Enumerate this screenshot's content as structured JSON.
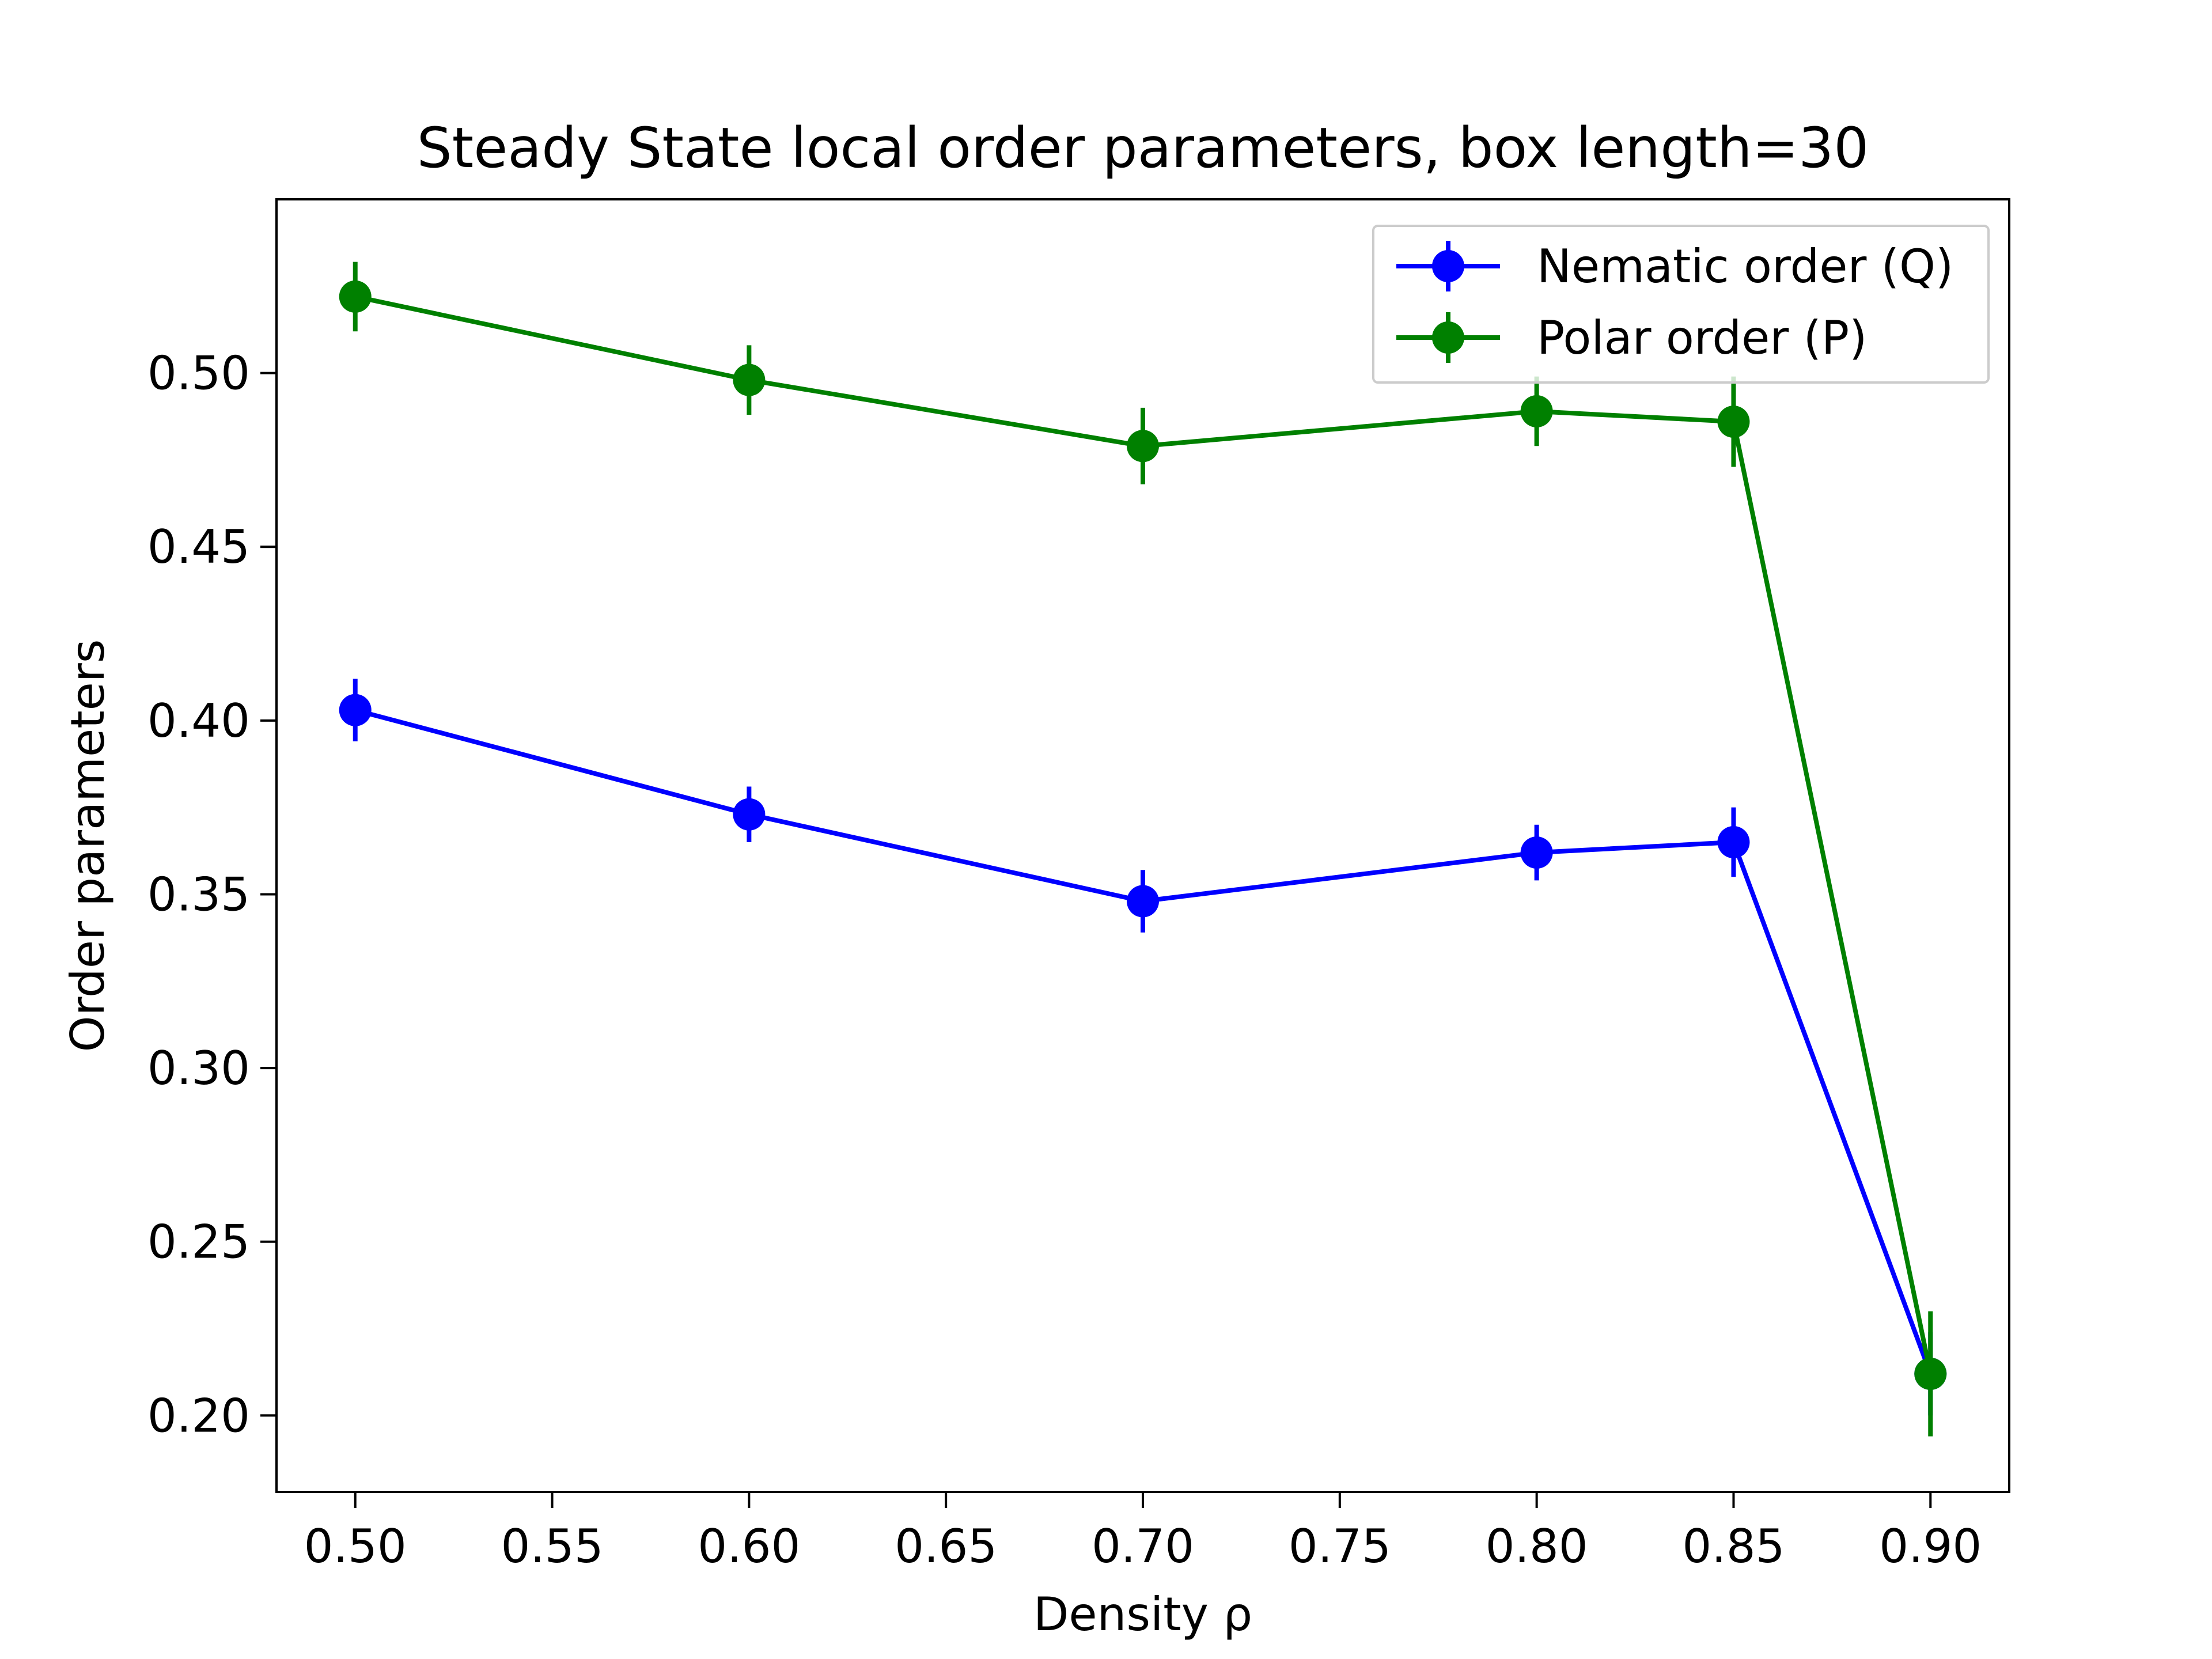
{
  "chart_data": {
    "type": "line",
    "title": "Steady State local order parameters, box length=30",
    "xlabel": "Density ρ",
    "ylabel": "Order parameters",
    "xlim": [
      0.48,
      0.92
    ],
    "ylim": [
      0.178,
      0.55
    ],
    "xticks": [
      0.5,
      0.55,
      0.6,
      0.65,
      0.7,
      0.75,
      0.8,
      0.85,
      0.9
    ],
    "xtick_labels": [
      "0.50",
      "0.55",
      "0.60",
      "0.65",
      "0.70",
      "0.75",
      "0.80",
      "0.85",
      "0.90"
    ],
    "yticks": [
      0.2,
      0.25,
      0.3,
      0.35,
      0.4,
      0.45,
      0.5
    ],
    "ytick_labels": [
      "0.20",
      "0.25",
      "0.30",
      "0.35",
      "0.40",
      "0.45",
      "0.50"
    ],
    "grid": false,
    "legend_position": "top-right",
    "x": [
      0.5,
      0.6,
      0.7,
      0.8,
      0.85,
      0.9
    ],
    "series": [
      {
        "name": "Nematic order (Q)",
        "color": "#0000ff",
        "values": [
          0.403,
          0.373,
          0.348,
          0.362,
          0.365,
          0.212
        ],
        "errors": [
          0.009,
          0.008,
          0.009,
          0.008,
          0.01,
          0.012
        ]
      },
      {
        "name": "Polar order (P)",
        "color": "#008000",
        "values": [
          0.522,
          0.498,
          0.479,
          0.489,
          0.486,
          0.212
        ],
        "errors": [
          0.01,
          0.01,
          0.011,
          0.01,
          0.013,
          0.018
        ]
      }
    ]
  }
}
